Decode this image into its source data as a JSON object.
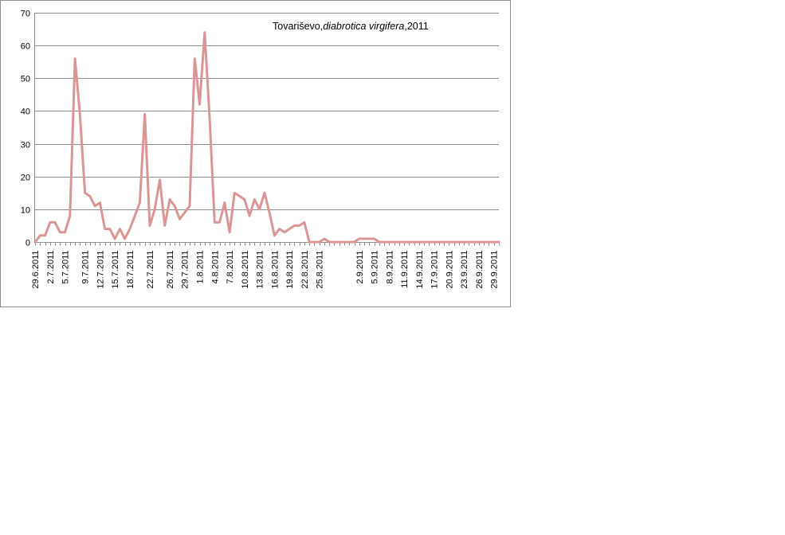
{
  "chart_data": {
    "type": "line",
    "title_prefix": "Tovariševo,",
    "title_italic": "diabrotica virgifera",
    "title_suffix": ",2011",
    "xlabel": "",
    "ylabel": "",
    "ylim": [
      0,
      70
    ],
    "yticks": [
      0,
      10,
      20,
      30,
      40,
      50,
      60,
      70
    ],
    "grid": true,
    "legend": "none",
    "x_start": "2011-06-29",
    "x_end": "2011-09-30",
    "xtick_labels": [
      "29.6.2011",
      "2.7.2011",
      "5.7.2011",
      "9.7.2011",
      "12.7.2011",
      "15.7.2011",
      "18.7.2011",
      "22.7.2011",
      "26.7.2011",
      "29.7.2011",
      "1.8.2011",
      "4.8.2011",
      "7.8.2011",
      "10.8.2011",
      "13.8.2011",
      "16.8.2011",
      "19.8.2011",
      "22.8.2011",
      "25.8.2011",
      "2.9.2011",
      "5.9.2011",
      "8.9.2011",
      "11.9.2011",
      "14.9.2011",
      "17.9.2011",
      "20.9.2011",
      "23.9.2011",
      "26.9.2011",
      "29.9.2011"
    ],
    "colors": {
      "line": "#d99694",
      "grid": "#8c8c8c",
      "axis": "#8c8c8c"
    },
    "series": [
      {
        "points": [
          [
            "2011-06-29",
            0
          ],
          [
            "2011-06-30",
            2
          ],
          [
            "2011-07-01",
            2
          ],
          [
            "2011-07-02",
            6
          ],
          [
            "2011-07-03",
            6
          ],
          [
            "2011-07-04",
            3
          ],
          [
            "2011-07-05",
            3
          ],
          [
            "2011-07-06",
            8
          ],
          [
            "2011-07-07",
            56
          ],
          [
            "2011-07-08",
            39
          ],
          [
            "2011-07-09",
            15
          ],
          [
            "2011-07-10",
            14
          ],
          [
            "2011-07-11",
            11
          ],
          [
            "2011-07-12",
            12
          ],
          [
            "2011-07-13",
            4
          ],
          [
            "2011-07-14",
            4
          ],
          [
            "2011-07-15",
            1
          ],
          [
            "2011-07-16",
            4
          ],
          [
            "2011-07-17",
            1
          ],
          [
            "2011-07-18",
            4
          ],
          [
            "2011-07-19",
            8
          ],
          [
            "2011-07-20",
            12
          ],
          [
            "2011-07-21",
            39
          ],
          [
            "2011-07-22",
            5
          ],
          [
            "2011-07-23",
            10
          ],
          [
            "2011-07-24",
            19
          ],
          [
            "2011-07-25",
            5
          ],
          [
            "2011-07-26",
            13
          ],
          [
            "2011-07-27",
            11
          ],
          [
            "2011-07-28",
            7
          ],
          [
            "2011-07-29",
            9
          ],
          [
            "2011-07-30",
            11
          ],
          [
            "2011-07-31",
            56
          ],
          [
            "2011-08-01",
            42
          ],
          [
            "2011-08-02",
            64
          ],
          [
            "2011-08-03",
            38
          ],
          [
            "2011-08-04",
            6
          ],
          [
            "2011-08-05",
            6
          ],
          [
            "2011-08-06",
            12
          ],
          [
            "2011-08-07",
            3
          ],
          [
            "2011-08-08",
            15
          ],
          [
            "2011-08-09",
            14
          ],
          [
            "2011-08-10",
            13
          ],
          [
            "2011-08-11",
            8
          ],
          [
            "2011-08-12",
            13
          ],
          [
            "2011-08-13",
            10
          ],
          [
            "2011-08-14",
            15
          ],
          [
            "2011-08-15",
            9
          ],
          [
            "2011-08-16",
            2
          ],
          [
            "2011-08-17",
            4
          ],
          [
            "2011-08-18",
            3
          ],
          [
            "2011-08-19",
            4
          ],
          [
            "2011-08-20",
            5
          ],
          [
            "2011-08-21",
            5
          ],
          [
            "2011-08-22",
            6
          ],
          [
            "2011-08-23",
            0
          ],
          [
            "2011-08-24",
            0
          ],
          [
            "2011-08-25",
            0
          ],
          [
            "2011-08-26",
            1
          ],
          [
            "2011-08-27",
            0
          ],
          [
            "2011-08-28",
            0
          ],
          [
            "2011-08-29",
            0
          ],
          [
            "2011-08-30",
            0
          ],
          [
            "2011-08-31",
            0
          ],
          [
            "2011-09-01",
            0
          ],
          [
            "2011-09-02",
            1
          ],
          [
            "2011-09-03",
            1
          ],
          [
            "2011-09-04",
            1
          ],
          [
            "2011-09-05",
            1
          ],
          [
            "2011-09-06",
            0
          ],
          [
            "2011-09-07",
            0
          ],
          [
            "2011-09-08",
            0
          ],
          [
            "2011-09-09",
            0
          ],
          [
            "2011-09-10",
            0
          ],
          [
            "2011-09-11",
            0
          ],
          [
            "2011-09-12",
            0
          ],
          [
            "2011-09-13",
            0
          ],
          [
            "2011-09-14",
            0
          ],
          [
            "2011-09-15",
            0
          ],
          [
            "2011-09-16",
            0
          ],
          [
            "2011-09-17",
            0
          ],
          [
            "2011-09-18",
            0
          ],
          [
            "2011-09-19",
            0
          ],
          [
            "2011-09-20",
            0
          ],
          [
            "2011-09-21",
            0
          ],
          [
            "2011-09-22",
            0
          ],
          [
            "2011-09-23",
            0
          ],
          [
            "2011-09-24",
            0
          ],
          [
            "2011-09-25",
            0
          ],
          [
            "2011-09-26",
            0
          ],
          [
            "2011-09-27",
            0
          ],
          [
            "2011-09-28",
            0
          ],
          [
            "2011-09-29",
            0
          ],
          [
            "2011-09-30",
            0
          ]
        ]
      }
    ]
  }
}
